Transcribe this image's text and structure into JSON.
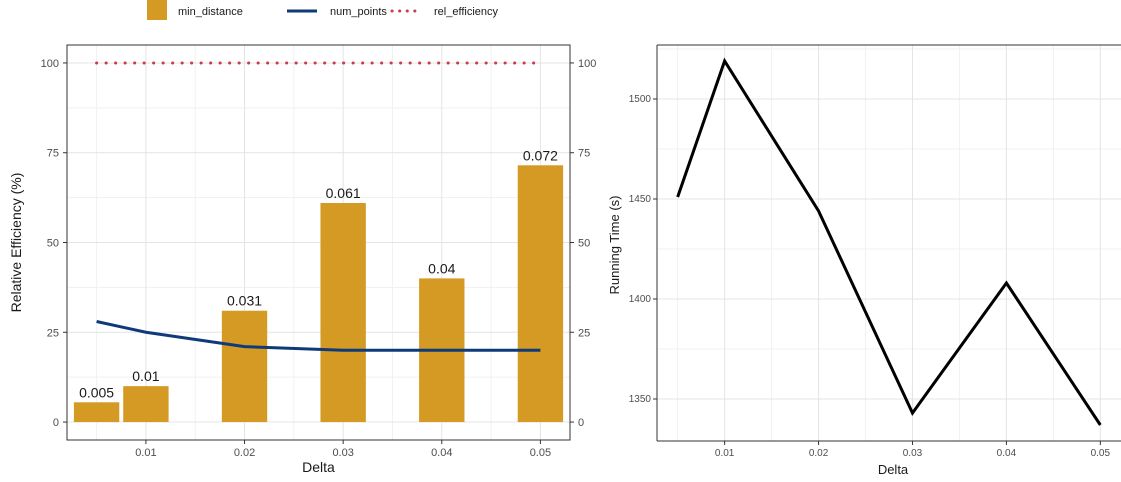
{
  "colors": {
    "bar": "#D49A23",
    "line": "#0F3A7A",
    "dotted": "#C83A4E",
    "running": "#000000",
    "grid_major": "#e4e4e4",
    "grid_minor": "#f1f1f1",
    "axis": "#333333"
  },
  "legend": {
    "items": [
      {
        "label": "min_distance",
        "shape": "bar"
      },
      {
        "label": "num_points",
        "shape": "line"
      },
      {
        "label": "rel_efficiency",
        "shape": "dotted"
      }
    ]
  },
  "chart_data": [
    {
      "type": "bar",
      "xlabel": "Delta",
      "ylabel": "Relative Efficiency (%)",
      "xlim": [
        0.002,
        0.053
      ],
      "ylim": [
        -5,
        105
      ],
      "x_ticks": [
        0.01,
        0.02,
        0.03,
        0.04,
        0.05
      ],
      "x_tick_labels": [
        "0.01",
        "0.02",
        "0.03",
        "0.04",
        "0.05"
      ],
      "y_ticks": [
        0,
        25,
        50,
        75,
        100
      ],
      "y_tick_labels": [
        "0",
        "25",
        "50",
        "75",
        "100"
      ],
      "y2_ticks": [
        0,
        25,
        50,
        75,
        100
      ],
      "y2_tick_labels": [
        "0",
        "25",
        "50",
        "75",
        "100"
      ],
      "bar_width": 0.0046,
      "grid": true,
      "series": [
        {
          "name": "min_distance",
          "type": "bar",
          "x": [
            0.005,
            0.01,
            0.02,
            0.03,
            0.04,
            0.05
          ],
          "values": [
            5.5,
            10,
            31,
            61,
            40,
            71.5
          ],
          "labels": [
            "0.005",
            "0.01",
            "0.031",
            "0.061",
            "0.04",
            "0.072"
          ]
        },
        {
          "name": "num_points",
          "type": "line",
          "x": [
            0.005,
            0.01,
            0.02,
            0.03,
            0.04,
            0.05
          ],
          "values": [
            28,
            25,
            21,
            20,
            20,
            20
          ]
        },
        {
          "name": "rel_efficiency",
          "type": "dotted",
          "x": [
            0.005,
            0.01,
            0.02,
            0.03,
            0.04,
            0.05
          ],
          "values": [
            100,
            100,
            100,
            100,
            100,
            100
          ]
        }
      ]
    },
    {
      "type": "line",
      "xlabel": "Delta",
      "ylabel": "Running Time (s)",
      "xlim": [
        0.0028,
        0.0522
      ],
      "ylim": [
        1329,
        1527
      ],
      "x_ticks": [
        0.01,
        0.02,
        0.03,
        0.04,
        0.05
      ],
      "x_tick_labels": [
        "0.01",
        "0.02",
        "0.03",
        "0.04",
        "0.05"
      ],
      "y_ticks": [
        1350,
        1400,
        1450,
        1500
      ],
      "y_tick_labels": [
        "1350",
        "1400",
        "1450",
        "1500"
      ],
      "grid": true,
      "series": [
        {
          "type": "line",
          "x": [
            0.005,
            0.01,
            0.02,
            0.03,
            0.04,
            0.05
          ],
          "values": [
            1451,
            1519,
            1444,
            1343,
            1408,
            1337
          ]
        }
      ]
    }
  ]
}
